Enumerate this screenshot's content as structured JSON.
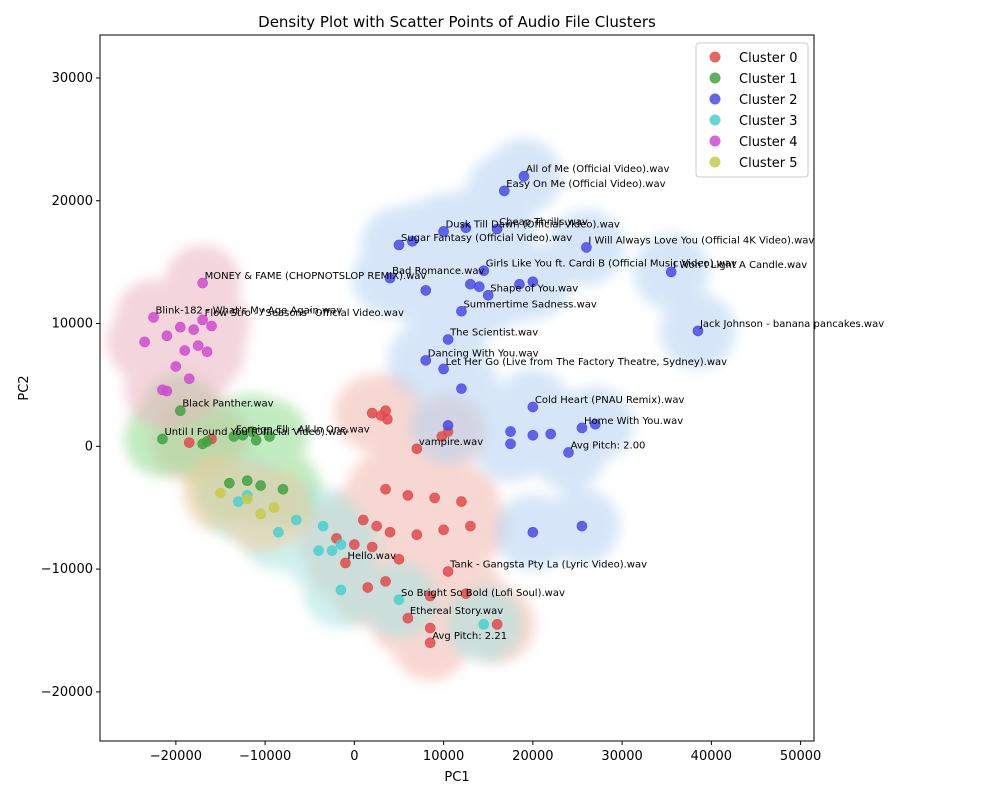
{
  "chart_data": {
    "type": "scatter",
    "title": "Density Plot with Scatter Points of Audio File Clusters",
    "xlabel": "PC1",
    "ylabel": "PC2",
    "xlim": [
      -28500,
      51500
    ],
    "ylim": [
      -24000,
      33500
    ],
    "xticks": [
      -20000,
      -10000,
      0,
      10000,
      20000,
      30000,
      40000,
      50000
    ],
    "yticks": [
      -20000,
      -10000,
      0,
      10000,
      20000,
      30000
    ],
    "xtick_labels": [
      "−20000",
      "−10000",
      "0",
      "10000",
      "20000",
      "30000",
      "40000",
      "50000"
    ],
    "ytick_labels": [
      "−20000",
      "−10000",
      "0",
      "10000",
      "20000",
      "30000"
    ],
    "legend_position": "top-right",
    "series": [
      {
        "name": "Cluster 0",
        "color": "#e24a4a",
        "points": [
          {
            "x": 2000,
            "y": 2700,
            "label": ""
          },
          {
            "x": 3000,
            "y": 2500,
            "label": ""
          },
          {
            "x": 3500,
            "y": 2900,
            "label": ""
          },
          {
            "x": 3700,
            "y": 2200,
            "label": ""
          },
          {
            "x": 10500,
            "y": 1200,
            "label": ""
          },
          {
            "x": 9800,
            "y": 800,
            "label": ""
          },
          {
            "x": 3500,
            "y": -3500,
            "label": ""
          },
          {
            "x": 6000,
            "y": -4000,
            "label": ""
          },
          {
            "x": 9000,
            "y": -4200,
            "label": ""
          },
          {
            "x": 12000,
            "y": -4500,
            "label": ""
          },
          {
            "x": 1000,
            "y": -6000,
            "label": ""
          },
          {
            "x": 2500,
            "y": -6500,
            "label": ""
          },
          {
            "x": 4000,
            "y": -7000,
            "label": ""
          },
          {
            "x": 7000,
            "y": -7200,
            "label": ""
          },
          {
            "x": 10000,
            "y": -6800,
            "label": ""
          },
          {
            "x": 13000,
            "y": -6500,
            "label": ""
          },
          {
            "x": -2000,
            "y": -7500,
            "label": ""
          },
          {
            "x": 0,
            "y": -8000,
            "label": ""
          },
          {
            "x": 2000,
            "y": -8200,
            "label": ""
          },
          {
            "x": 5000,
            "y": -9200,
            "label": ""
          },
          {
            "x": -1000,
            "y": -9500,
            "label": "Hello.wav"
          },
          {
            "x": 1500,
            "y": -11500,
            "label": ""
          },
          {
            "x": 3500,
            "y": -11000,
            "label": ""
          },
          {
            "x": 10500,
            "y": -10200,
            "label": "Tank - Gangsta Pty La (Lyric Video).wav"
          },
          {
            "x": 8500,
            "y": -12200,
            "label": ""
          },
          {
            "x": 12500,
            "y": -12000,
            "label": ""
          },
          {
            "x": 6000,
            "y": -14000,
            "label": "Ethereal Story.wav"
          },
          {
            "x": 8500,
            "y": -14800,
            "label": ""
          },
          {
            "x": 8500,
            "y": -16000,
            "label": "Avg Pitch: 2.21"
          },
          {
            "x": 16000,
            "y": -14500,
            "label": ""
          },
          {
            "x": -18500,
            "y": 300,
            "label": ""
          },
          {
            "x": -16000,
            "y": 600,
            "label": ""
          },
          {
            "x": 7000,
            "y": -200,
            "label": "vampire.wav"
          }
        ]
      },
      {
        "name": "Cluster 1",
        "color": "#3fa33f",
        "points": [
          {
            "x": -21500,
            "y": 600,
            "label": "Until I Found You (Official Video).wav"
          },
          {
            "x": -19500,
            "y": 2900,
            "label": "Black Panther.wav"
          },
          {
            "x": -17000,
            "y": 200,
            "label": ""
          },
          {
            "x": -16500,
            "y": 400,
            "label": ""
          },
          {
            "x": -13500,
            "y": 800,
            "label": "Foreign Ell - All In One.wav"
          },
          {
            "x": -12500,
            "y": 900,
            "label": ""
          },
          {
            "x": -11000,
            "y": 500,
            "label": ""
          },
          {
            "x": -9500,
            "y": 800,
            "label": ""
          },
          {
            "x": -11500,
            "y": 1200,
            "label": ""
          },
          {
            "x": -14000,
            "y": -3000,
            "label": ""
          },
          {
            "x": -12000,
            "y": -2800,
            "label": ""
          },
          {
            "x": -10500,
            "y": -3200,
            "label": ""
          },
          {
            "x": -8000,
            "y": -3500,
            "label": ""
          }
        ]
      },
      {
        "name": "Cluster 2",
        "color": "#4a4ae8",
        "points": [
          {
            "x": 19000,
            "y": 22000,
            "label": "All of Me (Official Video).wav"
          },
          {
            "x": 16800,
            "y": 20800,
            "label": "Easy On Me (Official Video).wav"
          },
          {
            "x": 5000,
            "y": 16400,
            "label": "Sugar Fantasy (Official Video).wav"
          },
          {
            "x": 6500,
            "y": 16700,
            "label": ""
          },
          {
            "x": 10000,
            "y": 17500,
            "label": "Dusk Till Dawn (Official Video).wav"
          },
          {
            "x": 12500,
            "y": 17800,
            "label": ""
          },
          {
            "x": 16000,
            "y": 17700,
            "label": "Cheap Thrills.wav"
          },
          {
            "x": 26000,
            "y": 16200,
            "label": "I Will Always Love You (Official 4K Video).wav"
          },
          {
            "x": 35500,
            "y": 14200,
            "label": "I Won't Light A Candle.wav"
          },
          {
            "x": 14500,
            "y": 14300,
            "label": "Girls Like You ft. Cardi B (Official Music Video).wav"
          },
          {
            "x": 13000,
            "y": 13200,
            "label": ""
          },
          {
            "x": 14000,
            "y": 13000,
            "label": ""
          },
          {
            "x": 18500,
            "y": 13200,
            "label": ""
          },
          {
            "x": 20000,
            "y": 13400,
            "label": ""
          },
          {
            "x": 4000,
            "y": 13700,
            "label": "Bad Romance.wav"
          },
          {
            "x": 8000,
            "y": 12700,
            "label": ""
          },
          {
            "x": 15000,
            "y": 12300,
            "label": "Shape of You.wav"
          },
          {
            "x": 38500,
            "y": 9400,
            "label": "Jack Johnson - banana pancakes.wav"
          },
          {
            "x": 12000,
            "y": 11000,
            "label": "Summertime Sadness.wav"
          },
          {
            "x": 10500,
            "y": 8700,
            "label": "The Scientist.wav"
          },
          {
            "x": 8000,
            "y": 7000,
            "label": "Dancing With You.wav"
          },
          {
            "x": 10000,
            "y": 6300,
            "label": "Let Her Go (Live from The Factory Theatre, Sydney).wav"
          },
          {
            "x": 12000,
            "y": 4700,
            "label": ""
          },
          {
            "x": 20000,
            "y": 3200,
            "label": "Cold Heart (PNAU Remix).wav"
          },
          {
            "x": 25500,
            "y": 1500,
            "label": "Home With You.wav"
          },
          {
            "x": 27000,
            "y": 1800,
            "label": ""
          },
          {
            "x": 17500,
            "y": 1200,
            "label": ""
          },
          {
            "x": 20000,
            "y": 900,
            "label": ""
          },
          {
            "x": 22000,
            "y": 1000,
            "label": ""
          },
          {
            "x": 17500,
            "y": 200,
            "label": ""
          },
          {
            "x": 24000,
            "y": -500,
            "label": "Avg Pitch: 2.00"
          },
          {
            "x": 10500,
            "y": 1700,
            "label": ""
          },
          {
            "x": 25500,
            "y": -6500,
            "label": ""
          },
          {
            "x": 20000,
            "y": -7000,
            "label": ""
          }
        ]
      },
      {
        "name": "Cluster 3",
        "color": "#4ad0d0",
        "points": [
          {
            "x": -8500,
            "y": -7000,
            "label": ""
          },
          {
            "x": -6500,
            "y": -6000,
            "label": ""
          },
          {
            "x": -3500,
            "y": -6500,
            "label": ""
          },
          {
            "x": -2500,
            "y": -8500,
            "label": ""
          },
          {
            "x": -1500,
            "y": -8000,
            "label": ""
          },
          {
            "x": -4000,
            "y": -8500,
            "label": ""
          },
          {
            "x": -1500,
            "y": -11700,
            "label": ""
          },
          {
            "x": 5000,
            "y": -12500,
            "label": "So Bright So Bold (Lofi Soul).wav"
          },
          {
            "x": 14500,
            "y": -14500,
            "label": ""
          },
          {
            "x": -12000,
            "y": -4000,
            "label": ""
          },
          {
            "x": -13000,
            "y": -4500,
            "label": ""
          }
        ]
      },
      {
        "name": "Cluster 4",
        "color": "#d04ad0",
        "points": [
          {
            "x": -17000,
            "y": 13300,
            "label": "MONEY & FAME (CHOPNOTSLOP REMIX).wav"
          },
          {
            "x": -22500,
            "y": 10500,
            "label": "Blink-182 - What's My Age Again.wav"
          },
          {
            "x": -23500,
            "y": 8500,
            "label": ""
          },
          {
            "x": -21000,
            "y": 9000,
            "label": ""
          },
          {
            "x": -19500,
            "y": 9700,
            "label": ""
          },
          {
            "x": -18000,
            "y": 9500,
            "label": ""
          },
          {
            "x": -17000,
            "y": 10300,
            "label": "Flow Stro - \"Seasons\" Official Video.wav"
          },
          {
            "x": -16000,
            "y": 9800,
            "label": ""
          },
          {
            "x": -19000,
            "y": 7800,
            "label": ""
          },
          {
            "x": -17500,
            "y": 8200,
            "label": ""
          },
          {
            "x": -16500,
            "y": 7700,
            "label": ""
          },
          {
            "x": -20000,
            "y": 6500,
            "label": ""
          },
          {
            "x": -18500,
            "y": 5500,
            "label": ""
          },
          {
            "x": -21500,
            "y": 4600,
            "label": ""
          },
          {
            "x": -21000,
            "y": 4500,
            "label": ""
          }
        ]
      },
      {
        "name": "Cluster 5",
        "color": "#c9c94a",
        "points": [
          {
            "x": -15000,
            "y": -3800,
            "label": ""
          },
          {
            "x": -12000,
            "y": -4300,
            "label": ""
          },
          {
            "x": -10500,
            "y": -5500,
            "label": ""
          },
          {
            "x": -9000,
            "y": -5000,
            "label": ""
          }
        ]
      }
    ]
  }
}
